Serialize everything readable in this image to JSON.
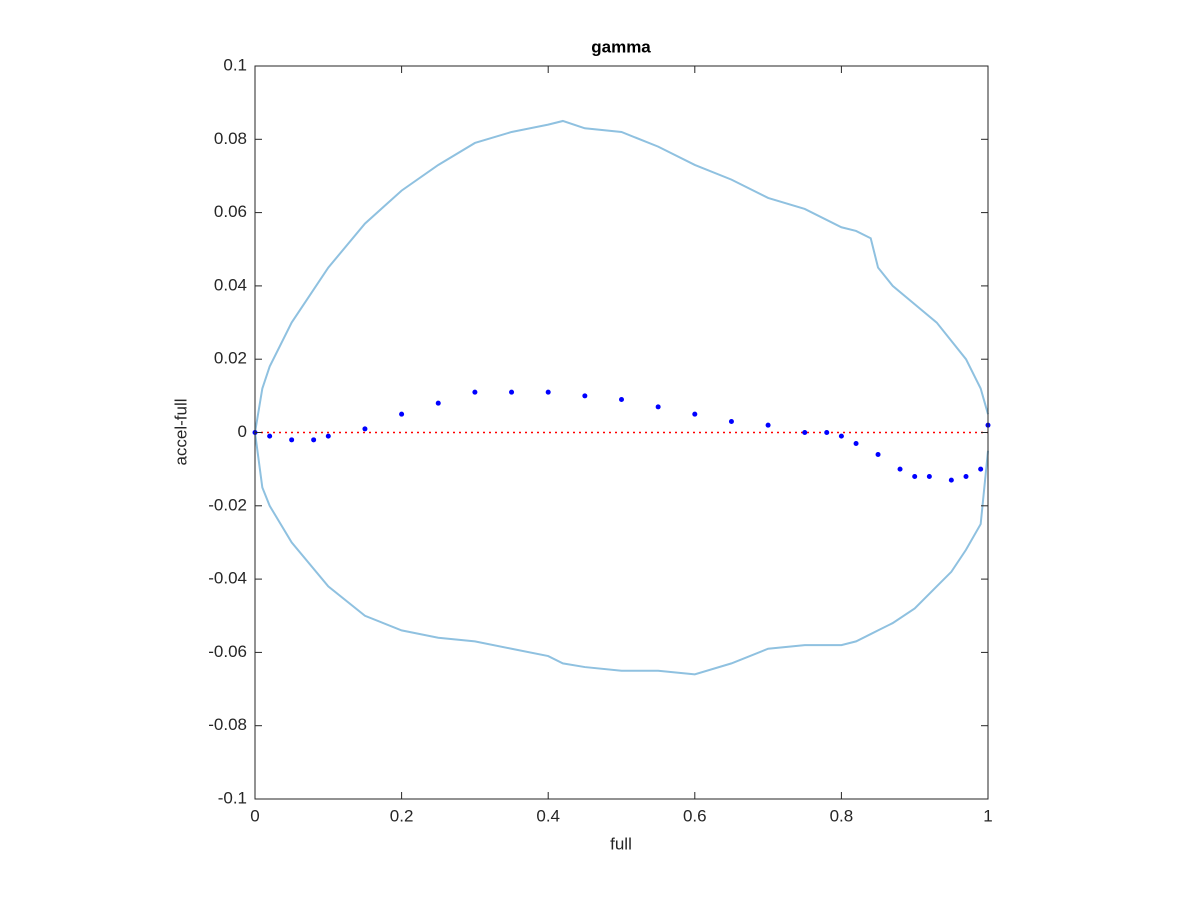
{
  "chart_data": {
    "type": "line",
    "title": "gamma",
    "x_label": "full",
    "y_label": "accel-full",
    "xlim": [
      0,
      1
    ],
    "ylim": [
      -0.1,
      0.1
    ],
    "xticks": [
      0,
      0.2,
      0.4,
      0.6,
      0.8,
      1
    ],
    "yticks": [
      -0.1,
      -0.08,
      -0.06,
      -0.04,
      -0.02,
      0,
      0.02,
      0.04,
      0.06,
      0.08,
      0.1
    ],
    "hline": {
      "value": 0,
      "color": "#ff0000"
    },
    "series": [
      {
        "type": "line",
        "color": "#8fc1e0",
        "x": [
          0,
          0.01,
          0.02,
          0.05,
          0.1,
          0.15,
          0.2,
          0.25,
          0.3,
          0.35,
          0.4,
          0.42,
          0.45,
          0.5,
          0.55,
          0.6,
          0.65,
          0.7,
          0.75,
          0.8,
          0.82,
          0.84,
          0.85,
          0.87,
          0.9,
          0.93,
          0.95,
          0.97,
          0.99,
          1
        ],
        "values": [
          0,
          0.012,
          0.018,
          0.03,
          0.045,
          0.057,
          0.066,
          0.073,
          0.079,
          0.082,
          0.084,
          0.085,
          0.083,
          0.082,
          0.078,
          0.073,
          0.069,
          0.064,
          0.061,
          0.056,
          0.055,
          0.053,
          0.045,
          0.04,
          0.035,
          0.03,
          0.025,
          0.02,
          0.012,
          0.005
        ]
      },
      {
        "type": "line",
        "color": "#8fc1e0",
        "x": [
          0,
          0.01,
          0.02,
          0.05,
          0.1,
          0.15,
          0.2,
          0.25,
          0.3,
          0.35,
          0.4,
          0.42,
          0.45,
          0.5,
          0.55,
          0.6,
          0.65,
          0.7,
          0.75,
          0.8,
          0.82,
          0.84,
          0.85,
          0.87,
          0.9,
          0.93,
          0.95,
          0.97,
          0.99,
          1
        ],
        "values": [
          0,
          -0.015,
          -0.02,
          -0.03,
          -0.042,
          -0.05,
          -0.054,
          -0.056,
          -0.057,
          -0.059,
          -0.061,
          -0.063,
          -0.064,
          -0.065,
          -0.065,
          -0.066,
          -0.063,
          -0.059,
          -0.058,
          -0.058,
          -0.057,
          -0.055,
          -0.054,
          -0.052,
          -0.048,
          -0.042,
          -0.038,
          -0.032,
          -0.025,
          -0.005
        ]
      },
      {
        "type": "scatter",
        "color": "#0000ff",
        "x": [
          0,
          0.02,
          0.05,
          0.08,
          0.1,
          0.15,
          0.2,
          0.25,
          0.3,
          0.35,
          0.4,
          0.45,
          0.5,
          0.55,
          0.6,
          0.65,
          0.7,
          0.75,
          0.78,
          0.8,
          0.82,
          0.85,
          0.88,
          0.9,
          0.92,
          0.95,
          0.97,
          0.99,
          1
        ],
        "values": [
          0,
          -0.001,
          -0.002,
          -0.002,
          -0.001,
          0.001,
          0.005,
          0.008,
          0.011,
          0.011,
          0.011,
          0.01,
          0.009,
          0.007,
          0.005,
          0.003,
          0.002,
          0,
          0,
          -0.001,
          -0.003,
          -0.006,
          -0.01,
          -0.012,
          -0.012,
          -0.013,
          -0.012,
          -0.01,
          0.002
        ]
      }
    ]
  }
}
